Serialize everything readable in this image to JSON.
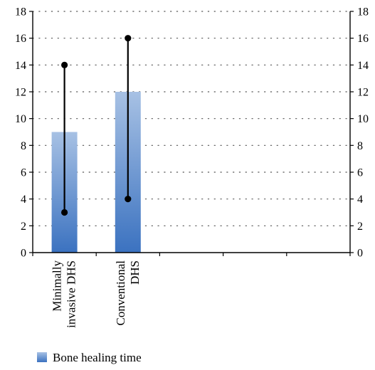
{
  "chart_data": {
    "type": "bar",
    "categories": [
      [
        "Minimally",
        "invasive DHS"
      ],
      [
        "Conventional",
        "DHS"
      ]
    ],
    "empty_slots": 3,
    "series": [
      {
        "name": "Bone healing time",
        "values": [
          9,
          12
        ],
        "ranges": [
          [
            3,
            14
          ],
          [
            4,
            16
          ]
        ]
      }
    ],
    "ylim": [
      0,
      18
    ],
    "yticks": [
      "0",
      "2",
      "4",
      "6",
      "8",
      "10",
      "12",
      "14",
      "16",
      "18"
    ],
    "secondary_yaxis": true,
    "grid": "horizontal-dotted",
    "legend": "bottom-left",
    "colors": {
      "bar_top": "#a7c1e4",
      "bar_bottom": "#3b72c0",
      "range": "#000000",
      "axis": "#000000",
      "grid": "#555555"
    }
  }
}
